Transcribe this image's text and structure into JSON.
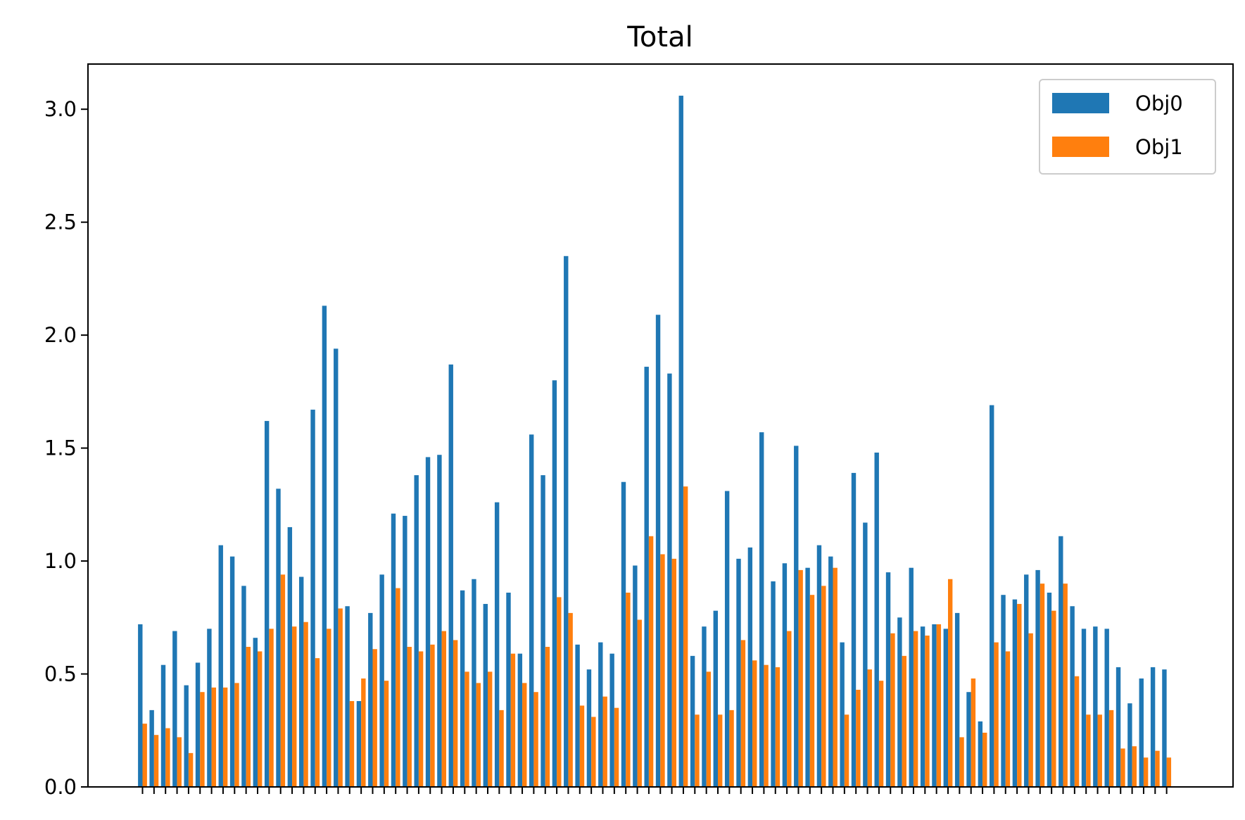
{
  "chart_data": {
    "type": "bar",
    "title": "Total",
    "xlabel": "",
    "ylabel": "",
    "ylim": [
      0,
      3.2
    ],
    "yticks": [
      "0.0",
      "0.5",
      "1.0",
      "1.5",
      "2.0",
      "2.5",
      "3.0"
    ],
    "xtick_labels_shown": false,
    "grid": false,
    "legend_position": "top-right",
    "series": [
      {
        "name": "Obj0",
        "color": "#1f77b4",
        "values": [
          0.72,
          0.34,
          0.54,
          0.69,
          0.45,
          0.55,
          0.7,
          1.07,
          1.02,
          0.89,
          0.66,
          1.62,
          1.32,
          1.15,
          0.93,
          1.67,
          2.13,
          1.94,
          0.8,
          0.38,
          0.77,
          0.94,
          1.21,
          1.2,
          1.38,
          1.46,
          1.47,
          1.87,
          0.87,
          0.92,
          0.81,
          1.26,
          0.86,
          0.59,
          1.56,
          1.38,
          1.8,
          2.35,
          0.63,
          0.52,
          0.64,
          0.59,
          1.35,
          0.98,
          1.86,
          2.09,
          1.83,
          3.06,
          0.58,
          0.71,
          0.78,
          1.31,
          1.01,
          1.06,
          1.57,
          0.91,
          0.99,
          1.51,
          0.97,
          1.07,
          1.02,
          0.64,
          1.39,
          1.17,
          1.48,
          0.95,
          0.75,
          0.97,
          0.71,
          0.72,
          0.7,
          0.77,
          0.42,
          0.29,
          1.69,
          0.85,
          0.83,
          0.94,
          0.96,
          0.86,
          1.11,
          0.8,
          0.7,
          0.71,
          0.7,
          0.53,
          0.37,
          0.48,
          0.53,
          0.52
        ]
      },
      {
        "name": "Obj1",
        "color": "#ff7f0e",
        "values": [
          0.28,
          0.23,
          0.26,
          0.22,
          0.15,
          0.42,
          0.44,
          0.44,
          0.46,
          0.62,
          0.6,
          0.7,
          0.94,
          0.71,
          0.73,
          0.57,
          0.7,
          0.79,
          0.38,
          0.48,
          0.61,
          0.47,
          0.88,
          0.62,
          0.6,
          0.63,
          0.69,
          0.65,
          0.51,
          0.46,
          0.51,
          0.34,
          0.59,
          0.46,
          0.42,
          0.62,
          0.84,
          0.77,
          0.36,
          0.31,
          0.4,
          0.35,
          0.86,
          0.74,
          1.11,
          1.03,
          1.01,
          1.33,
          0.32,
          0.51,
          0.32,
          0.34,
          0.65,
          0.56,
          0.54,
          0.53,
          0.69,
          0.96,
          0.85,
          0.89,
          0.97,
          0.32,
          0.43,
          0.52,
          0.47,
          0.68,
          0.58,
          0.69,
          0.67,
          0.72,
          0.92,
          0.22,
          0.48,
          0.24,
          0.64,
          0.6,
          0.81,
          0.68,
          0.9,
          0.78,
          0.9,
          0.49,
          0.32,
          0.32,
          0.34,
          0.17,
          0.18,
          0.13,
          0.16,
          0.13
        ]
      }
    ]
  }
}
